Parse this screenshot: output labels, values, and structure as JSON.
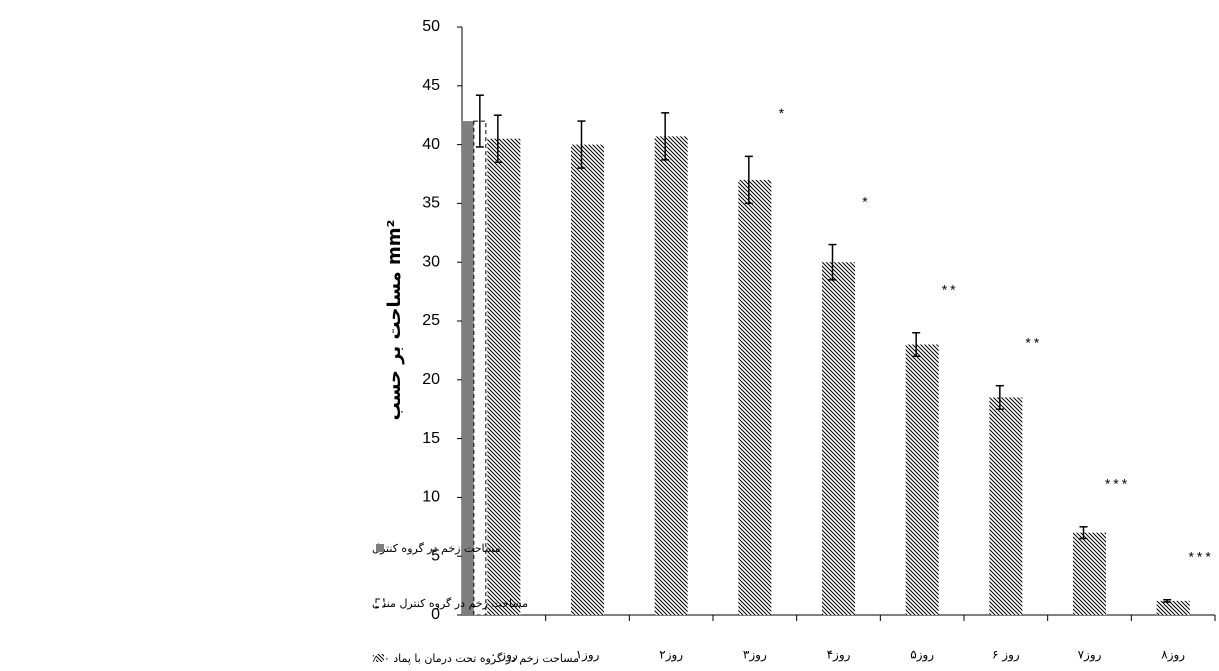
{
  "chart_data": {
    "type": "bar",
    "y_label": "مساحت بر حسب mm²",
    "categories": [
      "روز ۰",
      "روز۱",
      "روز۲",
      "روز۳",
      "روز۴",
      "روز۵",
      "روز ۶",
      "روز۷",
      "روز۸"
    ],
    "series": [
      {
        "name": "مساحت زخم در گروه کنترل",
        "color": "#7f7f7f",
        "fill": "solid",
        "values": [
          42,
          null,
          null,
          null,
          null,
          null,
          null,
          null,
          null
        ],
        "errors": [
          null,
          null,
          null,
          null,
          null,
          null,
          null,
          null,
          null
        ]
      },
      {
        "name": "مساحت زخم در گروه کنترل منفی",
        "color": "#000000",
        "fill": "dashed",
        "values": [
          42,
          null,
          null,
          null,
          null,
          null,
          null,
          null,
          null
        ],
        "errors": [
          2.2,
          null,
          null,
          null,
          null,
          null,
          null,
          null,
          null
        ]
      },
      {
        "name": "مساحت زخم در گروه تحت درمان با پماد ۹۰٪",
        "color": "#000000",
        "fill": "hatch",
        "values": [
          40.5,
          40,
          40.7,
          37,
          30,
          23,
          18.5,
          7,
          1.2
        ],
        "errors": [
          2,
          2,
          2,
          2,
          1.5,
          1,
          1,
          0.5,
          0.1
        ]
      }
    ],
    "annotations": [
      {
        "category": 3,
        "text": "*"
      },
      {
        "category": 4,
        "text": "*"
      },
      {
        "category": 5,
        "text": "**"
      },
      {
        "category": 6,
        "text": "**"
      },
      {
        "category": 7,
        "text": "***"
      },
      {
        "category": 8,
        "text": "***"
      }
    ],
    "ylim": [
      0,
      50
    ],
    "yticks": [
      0,
      5,
      10,
      15,
      20,
      25,
      30,
      35,
      40,
      45,
      50
    ],
    "grid": false
  }
}
